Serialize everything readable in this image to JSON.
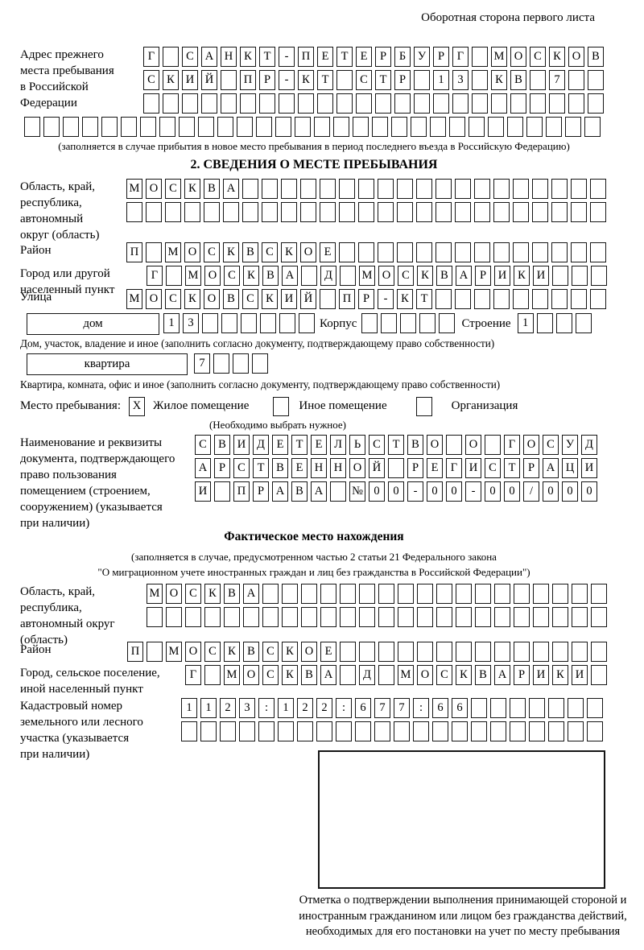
{
  "header": {
    "note": "Оборотная сторона первого листа"
  },
  "prev": {
    "label": "Адрес прежнего\nместа пребывания\nв Российской\nФедерации",
    "note": "(заполняется в случае прибытия в новое место пребывания в период последнего въезда в Российскую Федерацию)"
  },
  "s2": {
    "title": "2. СВЕДЕНИЯ О МЕСТЕ ПРЕБЫВАНИЯ",
    "oblast_label": "Область, край,\nреспублика,\nавтономный\nокруг (область)",
    "raion_label": "Район",
    "gorod_label": "Город или другой\nнаселенный пункт",
    "ulitsa_label": "Улица",
    "dom_label": "дом",
    "korpus_label": "Корпус",
    "stroenie_label": "Строение",
    "dom_note": "Дом, участок, владение и иное (заполнить согласно документу, подтверждающему право собственности)",
    "kvartira_label": "квартира",
    "kvartira_note": "Квартира, комната, офис и иное (заполнить согласно документу, подтверждающему право собственности)",
    "mesto_label": "Место пребывания:",
    "mesto_options": [
      {
        "label": "Жилое помещение",
        "mark": "X"
      },
      {
        "label": "Иное помещение",
        "mark": ""
      },
      {
        "label": "Организация",
        "mark": ""
      }
    ],
    "mesto_note": "(Необходимо выбрать нужное)",
    "doc_label": "Наименование и реквизиты\nдокумента, подтверждающего\nправо пользования\nпомещением (строением,\nсооружением) (указывается\nпри наличии)"
  },
  "s3": {
    "title": "Фактическое место нахождения",
    "sub1": "(заполняется в случае, предусмотренном частью 2 статьи 21 Федерального закона",
    "sub2": "\"О миграционном учете иностранных граждан и лиц без гражданства в Российской Федерации\")",
    "oblast_label": "Область, край,\nреспублика,\nавтономный округ\n(область)",
    "raion_label": "Район",
    "gorod_label": "Город, сельское поселение,\nиной населенный пункт",
    "kadastr_label": "Кадастровый номер\nземельного или лесного\nучастка (указывается\nпри наличии)",
    "stamp_caption": "Отметка о подтверждении выполнения принимающей стороной и иностранным гражданином или лицом без гражданства действий, необходимых для его постановки на учет по месту пребывания"
  },
  "boxes": {
    "prev1": {
      "chars": "Г САНКТ-ПЕТЕРБУРГ МОСКОВ",
      "count": 24
    },
    "prev2": {
      "chars": "СКИЙ ПР-КТ СТР 13 КВ 7",
      "count": 24
    },
    "prev3": {
      "chars": "",
      "count": 24
    },
    "prev4": {
      "chars": "",
      "count": 30
    },
    "s2_oblast1": {
      "chars": "МОСКВА",
      "count": 25
    },
    "s2_oblast2": {
      "chars": "",
      "count": 25
    },
    "s2_raion": {
      "chars": "П МОСКВСКОЕ",
      "count": 25
    },
    "s2_gorod": {
      "chars": "Г МОСКВА Д МОСКВАРИКИ",
      "count": 24
    },
    "s2_ulitsa": {
      "chars": "МОСКОВСКИЙ ПР-КТ",
      "count": 25
    },
    "dom": {
      "chars": "13",
      "count": 8
    },
    "korpus": {
      "chars": "",
      "count": 5
    },
    "stroenie": {
      "chars": "1",
      "count": 4
    },
    "kvartira": {
      "chars": "7",
      "count": 4
    },
    "doc1": {
      "chars": "СВИДЕТЕЛЬСТВО О ГОСУД",
      "count": 21
    },
    "doc2": {
      "chars": "АРСТВЕННОЙ РЕГИСТРАЦИ",
      "count": 21
    },
    "doc3": {
      "chars": "И ПРАВА №00-00-00/000",
      "count": 21
    },
    "s3_oblast1": {
      "chars": "МОСКВА",
      "count": 24
    },
    "s3_oblast2": {
      "chars": "",
      "count": 24
    },
    "s3_raion": {
      "chars": "П МОСКВСКОЕ",
      "count": 25
    },
    "s3_gorod": {
      "chars": "Г МОСКВА Д МОСКВАРИКИ",
      "count": 22
    },
    "kadastr1": {
      "chars": "1123:122:677:66",
      "count": 22
    },
    "kadastr2": {
      "chars": "",
      "count": 22
    }
  }
}
